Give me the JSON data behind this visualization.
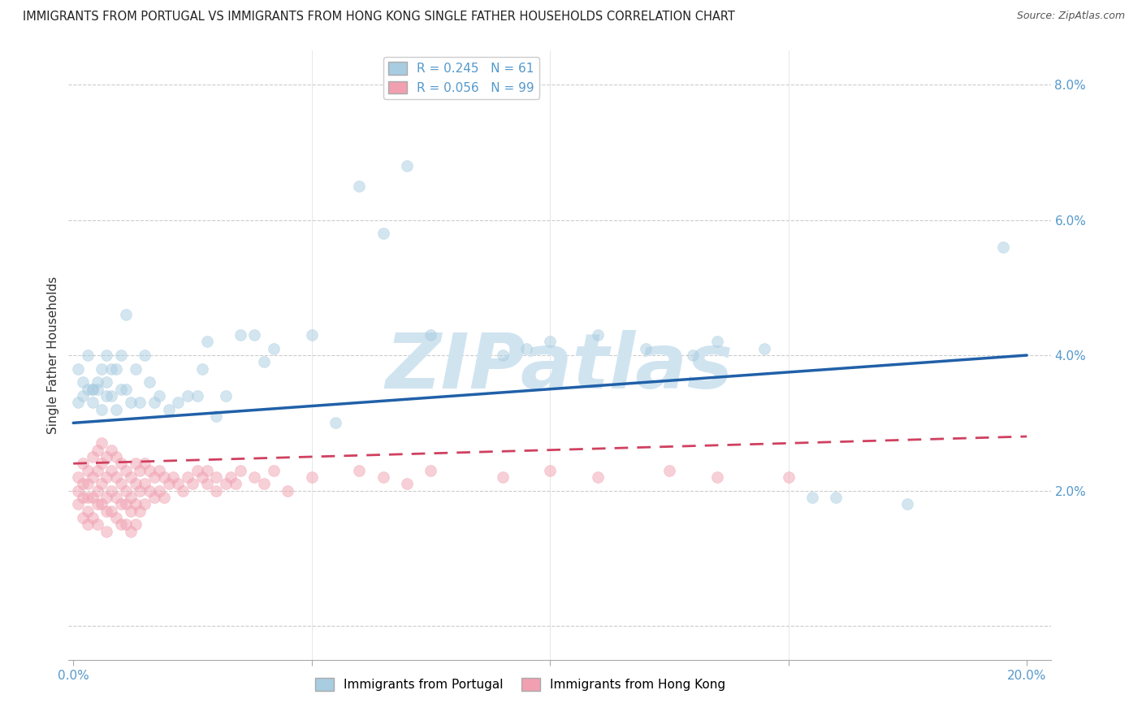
{
  "title": "IMMIGRANTS FROM PORTUGAL VS IMMIGRANTS FROM HONG KONG SINGLE FATHER HOUSEHOLDS CORRELATION CHART",
  "source": "Source: ZipAtlas.com",
  "ylabel": "Single Father Households",
  "xlim": [
    -0.001,
    0.205
  ],
  "ylim": [
    -0.005,
    0.085
  ],
  "xticks": [
    0.0,
    0.05,
    0.1,
    0.15,
    0.2
  ],
  "xtick_labels_show": [
    "0.0%",
    "",
    "",
    "",
    "20.0%"
  ],
  "yticks": [
    0.0,
    0.02,
    0.04,
    0.06,
    0.08
  ],
  "ytick_labels": [
    "",
    "2.0%",
    "4.0%",
    "6.0%",
    "8.0%"
  ],
  "series_portugal": {
    "label": "Immigrants from Portugal",
    "color_fill": "#a8cce0",
    "color_edge": "#7ab0d0",
    "R": 0.245,
    "N": 61,
    "trend_start_y": 0.03,
    "trend_end_y": 0.04,
    "x": [
      0.001,
      0.001,
      0.002,
      0.002,
      0.003,
      0.003,
      0.004,
      0.004,
      0.004,
      0.005,
      0.005,
      0.006,
      0.006,
      0.007,
      0.007,
      0.007,
      0.008,
      0.008,
      0.009,
      0.009,
      0.01,
      0.01,
      0.011,
      0.011,
      0.012,
      0.013,
      0.014,
      0.015,
      0.016,
      0.017,
      0.018,
      0.02,
      0.022,
      0.024,
      0.026,
      0.027,
      0.028,
      0.03,
      0.032,
      0.035,
      0.038,
      0.04,
      0.042,
      0.05,
      0.055,
      0.06,
      0.065,
      0.07,
      0.075,
      0.09,
      0.095,
      0.1,
      0.11,
      0.12,
      0.13,
      0.135,
      0.145,
      0.155,
      0.16,
      0.175,
      0.195
    ],
    "y": [
      0.033,
      0.038,
      0.034,
      0.036,
      0.035,
      0.04,
      0.035,
      0.033,
      0.035,
      0.036,
      0.035,
      0.038,
      0.032,
      0.034,
      0.036,
      0.04,
      0.034,
      0.038,
      0.032,
      0.038,
      0.035,
      0.04,
      0.035,
      0.046,
      0.033,
      0.038,
      0.033,
      0.04,
      0.036,
      0.033,
      0.034,
      0.032,
      0.033,
      0.034,
      0.034,
      0.038,
      0.042,
      0.031,
      0.034,
      0.043,
      0.043,
      0.039,
      0.041,
      0.043,
      0.03,
      0.065,
      0.058,
      0.068,
      0.043,
      0.04,
      0.041,
      0.042,
      0.043,
      0.041,
      0.04,
      0.042,
      0.041,
      0.019,
      0.019,
      0.018,
      0.056
    ]
  },
  "series_hongkong": {
    "label": "Immigrants from Hong Kong",
    "color_fill": "#f0a0b0",
    "color_edge": "#e07090",
    "R": 0.056,
    "N": 99,
    "trend_start_y": 0.024,
    "trend_end_y": 0.028,
    "x": [
      0.001,
      0.001,
      0.001,
      0.002,
      0.002,
      0.002,
      0.002,
      0.003,
      0.003,
      0.003,
      0.003,
      0.003,
      0.004,
      0.004,
      0.004,
      0.004,
      0.005,
      0.005,
      0.005,
      0.005,
      0.005,
      0.006,
      0.006,
      0.006,
      0.006,
      0.007,
      0.007,
      0.007,
      0.007,
      0.007,
      0.008,
      0.008,
      0.008,
      0.008,
      0.009,
      0.009,
      0.009,
      0.009,
      0.01,
      0.01,
      0.01,
      0.01,
      0.011,
      0.011,
      0.011,
      0.011,
      0.012,
      0.012,
      0.012,
      0.012,
      0.013,
      0.013,
      0.013,
      0.013,
      0.014,
      0.014,
      0.014,
      0.015,
      0.015,
      0.015,
      0.016,
      0.016,
      0.017,
      0.017,
      0.018,
      0.018,
      0.019,
      0.019,
      0.02,
      0.021,
      0.022,
      0.023,
      0.024,
      0.025,
      0.026,
      0.027,
      0.028,
      0.028,
      0.03,
      0.03,
      0.032,
      0.033,
      0.034,
      0.035,
      0.038,
      0.04,
      0.042,
      0.045,
      0.05,
      0.06,
      0.065,
      0.07,
      0.075,
      0.09,
      0.1,
      0.11,
      0.125,
      0.135,
      0.15
    ],
    "y": [
      0.022,
      0.02,
      0.018,
      0.024,
      0.021,
      0.019,
      0.016,
      0.023,
      0.021,
      0.019,
      0.017,
      0.015,
      0.025,
      0.022,
      0.019,
      0.016,
      0.026,
      0.023,
      0.02,
      0.018,
      0.015,
      0.027,
      0.024,
      0.021,
      0.018,
      0.025,
      0.022,
      0.019,
      0.017,
      0.014,
      0.026,
      0.023,
      0.02,
      0.017,
      0.025,
      0.022,
      0.019,
      0.016,
      0.024,
      0.021,
      0.018,
      0.015,
      0.023,
      0.02,
      0.018,
      0.015,
      0.022,
      0.019,
      0.017,
      0.014,
      0.024,
      0.021,
      0.018,
      0.015,
      0.023,
      0.02,
      0.017,
      0.024,
      0.021,
      0.018,
      0.023,
      0.02,
      0.022,
      0.019,
      0.023,
      0.02,
      0.022,
      0.019,
      0.021,
      0.022,
      0.021,
      0.02,
      0.022,
      0.021,
      0.023,
      0.022,
      0.021,
      0.023,
      0.02,
      0.022,
      0.021,
      0.022,
      0.021,
      0.023,
      0.022,
      0.021,
      0.023,
      0.02,
      0.022,
      0.023,
      0.022,
      0.021,
      0.023,
      0.022,
      0.023,
      0.022,
      0.023,
      0.022,
      0.022
    ]
  },
  "watermark_text": "ZIPatlas",
  "watermark_color": "#d0e4f0",
  "background_color": "#ffffff",
  "trend_portugal_color": "#2060a8",
  "trend_hongkong_color": "#d04060",
  "title_fontsize": 10.5,
  "tick_color": "#5599cc",
  "marker_size": 100
}
